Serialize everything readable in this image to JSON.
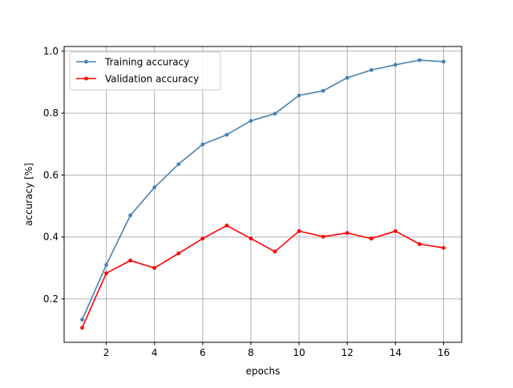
{
  "chart_data": {
    "type": "line",
    "title": "",
    "xlabel": "epochs",
    "ylabel": "accuracy [%]",
    "xlim": [
      0.25,
      16.75
    ],
    "ylim": [
      0.06,
      1.015
    ],
    "xticks": [
      2,
      4,
      6,
      8,
      10,
      12,
      14,
      16
    ],
    "yticks": [
      0.2,
      0.4,
      0.6,
      0.8,
      1.0
    ],
    "grid": true,
    "legend_position": "upper left",
    "x": [
      1,
      2,
      3,
      4,
      5,
      6,
      7,
      8,
      9,
      10,
      11,
      12,
      13,
      14,
      15,
      16
    ],
    "series": [
      {
        "name": "Training accuracy",
        "color": "#4682b4",
        "values": [
          0.133,
          0.31,
          0.47,
          0.56,
          0.635,
          0.699,
          0.73,
          0.775,
          0.798,
          0.857,
          0.872,
          0.914,
          0.939,
          0.956,
          0.971,
          0.966
        ]
      },
      {
        "name": "Validation accuracy",
        "color": "#ff0000",
        "values": [
          0.107,
          0.283,
          0.324,
          0.3,
          0.347,
          0.395,
          0.437,
          0.395,
          0.353,
          0.419,
          0.401,
          0.413,
          0.395,
          0.419,
          0.377,
          0.365
        ]
      }
    ]
  }
}
